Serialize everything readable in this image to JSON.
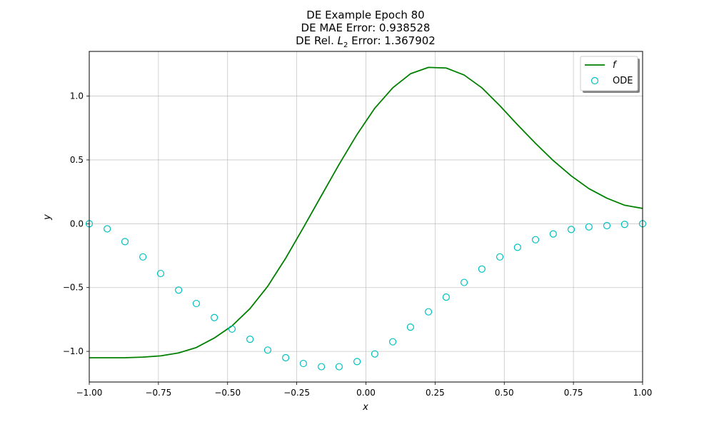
{
  "chart_data": {
    "type": "line",
    "title_lines": {
      "line1": "DE Example Epoch 80",
      "line2": "DE MAE Error: 0.938528",
      "line3_prefix": "DE Rel. ",
      "line3_var": "L",
      "line3_sub": "2",
      "line3_suffix": " Error: 1.367902"
    },
    "xlabel": "x",
    "ylabel": "y",
    "xlim": [
      -1.0,
      1.0
    ],
    "ylim": [
      -1.24,
      1.35
    ],
    "grid": true,
    "legend_placement": "top-right",
    "xticks": [
      {
        "value": -1.0,
        "label": "−1.00"
      },
      {
        "value": -0.75,
        "label": "−0.75"
      },
      {
        "value": -0.5,
        "label": "−0.50"
      },
      {
        "value": -0.25,
        "label": "−0.25"
      },
      {
        "value": 0.0,
        "label": "0.00"
      },
      {
        "value": 0.25,
        "label": "0.25"
      },
      {
        "value": 0.5,
        "label": "0.50"
      },
      {
        "value": 0.75,
        "label": "0.75"
      },
      {
        "value": 1.0,
        "label": "1.00"
      }
    ],
    "yticks": [
      {
        "value": -1.0,
        "label": "−1.0"
      },
      {
        "value": -0.5,
        "label": "−0.5"
      },
      {
        "value": 0.0,
        "label": "0.0"
      },
      {
        "value": 0.5,
        "label": "0.5"
      },
      {
        "value": 1.0,
        "label": "1.0"
      }
    ],
    "series": [
      {
        "name": "f",
        "kind": "line",
        "color": "#008000",
        "x": [
          -1.0,
          -0.935,
          -0.871,
          -0.806,
          -0.742,
          -0.677,
          -0.613,
          -0.548,
          -0.484,
          -0.419,
          -0.355,
          -0.29,
          -0.226,
          -0.161,
          -0.097,
          -0.032,
          0.032,
          0.097,
          0.161,
          0.226,
          0.29,
          0.355,
          0.419,
          0.484,
          0.548,
          0.613,
          0.677,
          0.742,
          0.806,
          0.871,
          0.935,
          1.0
        ],
        "y": [
          -1.05,
          -1.05,
          -1.05,
          -1.045,
          -1.035,
          -1.012,
          -0.97,
          -0.895,
          -0.8,
          -0.665,
          -0.49,
          -0.27,
          -0.03,
          0.22,
          0.465,
          0.7,
          0.905,
          1.065,
          1.175,
          1.225,
          1.22,
          1.165,
          1.065,
          0.925,
          0.775,
          0.63,
          0.495,
          0.375,
          0.275,
          0.2,
          0.145,
          0.12
        ]
      },
      {
        "name": "ODE",
        "kind": "scatter",
        "color": "#00bfbf",
        "x": [
          -1.0,
          -0.935,
          -0.871,
          -0.806,
          -0.742,
          -0.677,
          -0.613,
          -0.548,
          -0.484,
          -0.419,
          -0.355,
          -0.29,
          -0.226,
          -0.161,
          -0.097,
          -0.032,
          0.032,
          0.097,
          0.161,
          0.226,
          0.29,
          0.355,
          0.419,
          0.484,
          0.548,
          0.613,
          0.677,
          0.742,
          0.806,
          0.871,
          0.935,
          1.0
        ],
        "y": [
          0.0,
          -0.04,
          -0.14,
          -0.26,
          -0.39,
          -0.52,
          -0.625,
          -0.735,
          -0.825,
          -0.905,
          -0.99,
          -1.05,
          -1.095,
          -1.12,
          -1.12,
          -1.08,
          -1.02,
          -0.925,
          -0.81,
          -0.69,
          -0.575,
          -0.46,
          -0.355,
          -0.26,
          -0.185,
          -0.125,
          -0.08,
          -0.045,
          -0.025,
          -0.015,
          -0.005,
          0.0
        ]
      }
    ]
  }
}
